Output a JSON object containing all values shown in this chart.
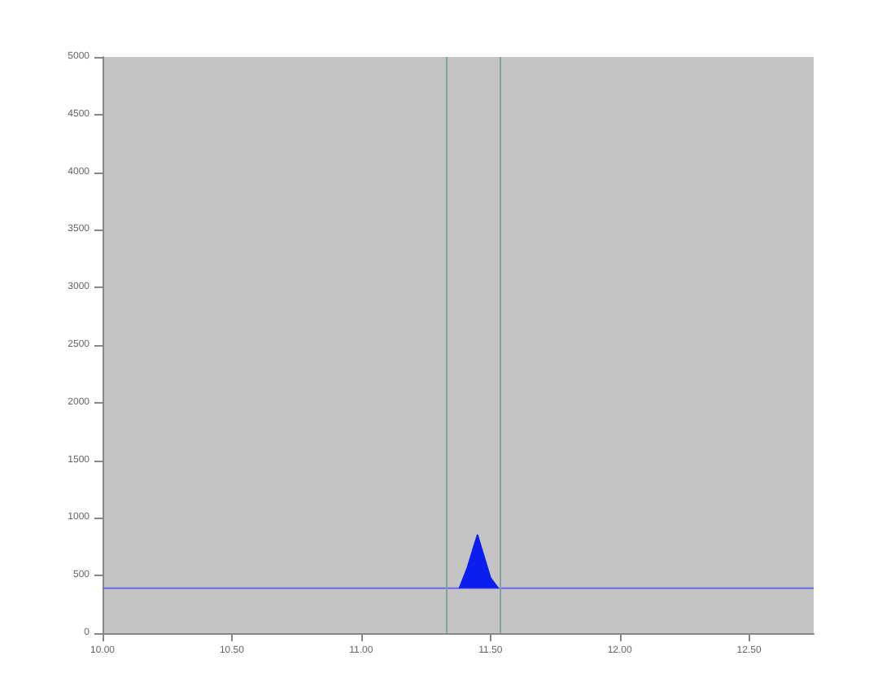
{
  "chart_data": {
    "type": "line",
    "series": [
      {
        "color": "#6a6af0",
        "x": [
          10.0,
          12.75
        ],
        "values": [
          390,
          390
        ]
      },
      {
        "type": "area",
        "color": "#0a1ef0",
        "x": [
          11.38,
          11.41,
          11.44,
          11.45,
          11.47,
          11.5,
          11.53
        ],
        "values": [
          390,
          560,
          780,
          850,
          700,
          480,
          390
        ]
      }
    ],
    "xlim": [
      10.0,
      12.75
    ],
    "xticks": [
      {
        "value": 10.0,
        "label": "10.00"
      },
      {
        "value": 10.5,
        "label": "10.50"
      },
      {
        "value": 11.0,
        "label": "11.00"
      },
      {
        "value": 11.5,
        "label": "11.50"
      },
      {
        "value": 12.0,
        "label": "12.00"
      },
      {
        "value": 12.5,
        "label": "12.50"
      }
    ],
    "ylim": [
      0,
      5000
    ],
    "yticks": [
      0,
      500,
      1000,
      1500,
      2000,
      2500,
      3000,
      3500,
      4000,
      4500,
      5000
    ],
    "ref_lines": [
      {
        "axis": "x",
        "value": 11.33,
        "color": "#7fa3a0"
      },
      {
        "axis": "x",
        "value": 11.54,
        "color": "#7fa3a0"
      }
    ],
    "grid": false,
    "marker": "none"
  }
}
